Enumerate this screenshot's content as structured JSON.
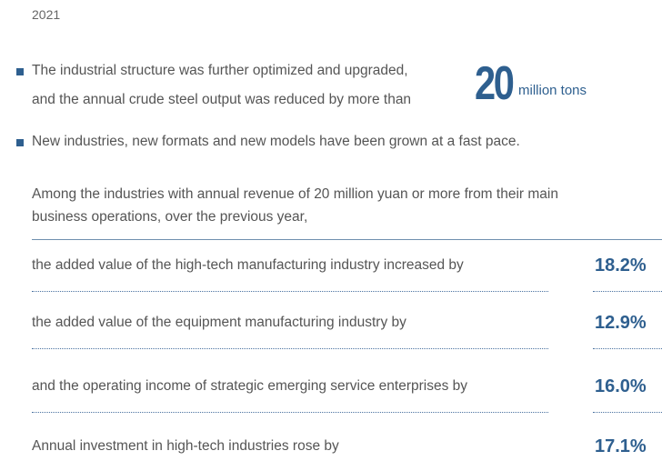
{
  "year": "2021",
  "bullets": [
    {
      "lines": [
        "The industrial structure was further optimized and upgraded,",
        "and the annual crude steel output was reduced by more than"
      ],
      "highlight": "20",
      "unit": "million tons"
    },
    {
      "lines": [
        "New industries, new formats and new models have been grown at a fast pace."
      ]
    }
  ],
  "intro": [
    "Among the industries with annual revenue of 20 million yuan or more from their main",
    "business operations, over the previous year,"
  ],
  "rows": [
    {
      "label": "the added value of the high-tech manufacturing industry increased by",
      "value": "18.2%"
    },
    {
      "label": "the added value of the equipment manufacturing industry by",
      "value": "12.9%"
    },
    {
      "label": "and the operating income of strategic emerging service enterprises by",
      "value": "16.0%"
    },
    {
      "label": "Annual investment in high-tech industries rose by",
      "value": "17.1%"
    }
  ]
}
